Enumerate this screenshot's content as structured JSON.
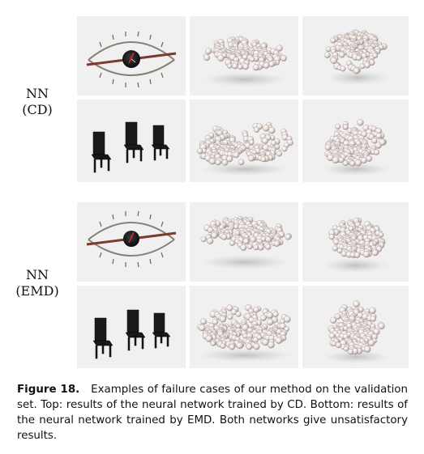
{
  "rows": [
    {
      "label_line1": "NN",
      "label_line2": "(CD)"
    },
    {
      "label_line1": "NN",
      "label_line2": "(EMD)"
    }
  ],
  "caption": {
    "figure_label": "Figure 18.",
    "text": "Examples of failure cases of our method on the validation set. Top: results of the neural network trained by CD. Bottom: results of the neural network trained by EMD. Both networks give unsatisfactory results."
  },
  "colors": {
    "panel_bg": "#f0f0f0",
    "sphere": "#e8dedb",
    "chair": "#1a1a1a"
  }
}
